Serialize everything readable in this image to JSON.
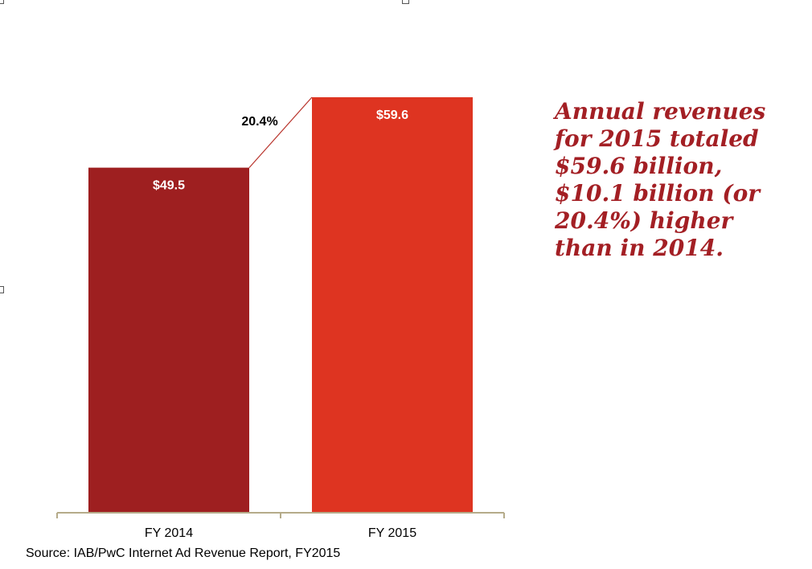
{
  "chart_data": {
    "type": "bar",
    "categories": [
      "FY 2014",
      "FY 2015"
    ],
    "values": [
      49.5,
      59.6
    ],
    "value_labels": [
      "$49.5",
      "$59.6"
    ],
    "colors": [
      "#9e1f20",
      "#de3421"
    ],
    "growth_label": "20.4%",
    "ylim": [
      0,
      59.6
    ],
    "grid": false,
    "axis_color": "#b5ab8a"
  },
  "headline": "Annual revenues for 2015 totaled $59.6 billion, $10.1 billion (or 20.4%) higher than in 2014.",
  "source": "Source: IAB/PwC Internet Ad Revenue Report, FY2015"
}
